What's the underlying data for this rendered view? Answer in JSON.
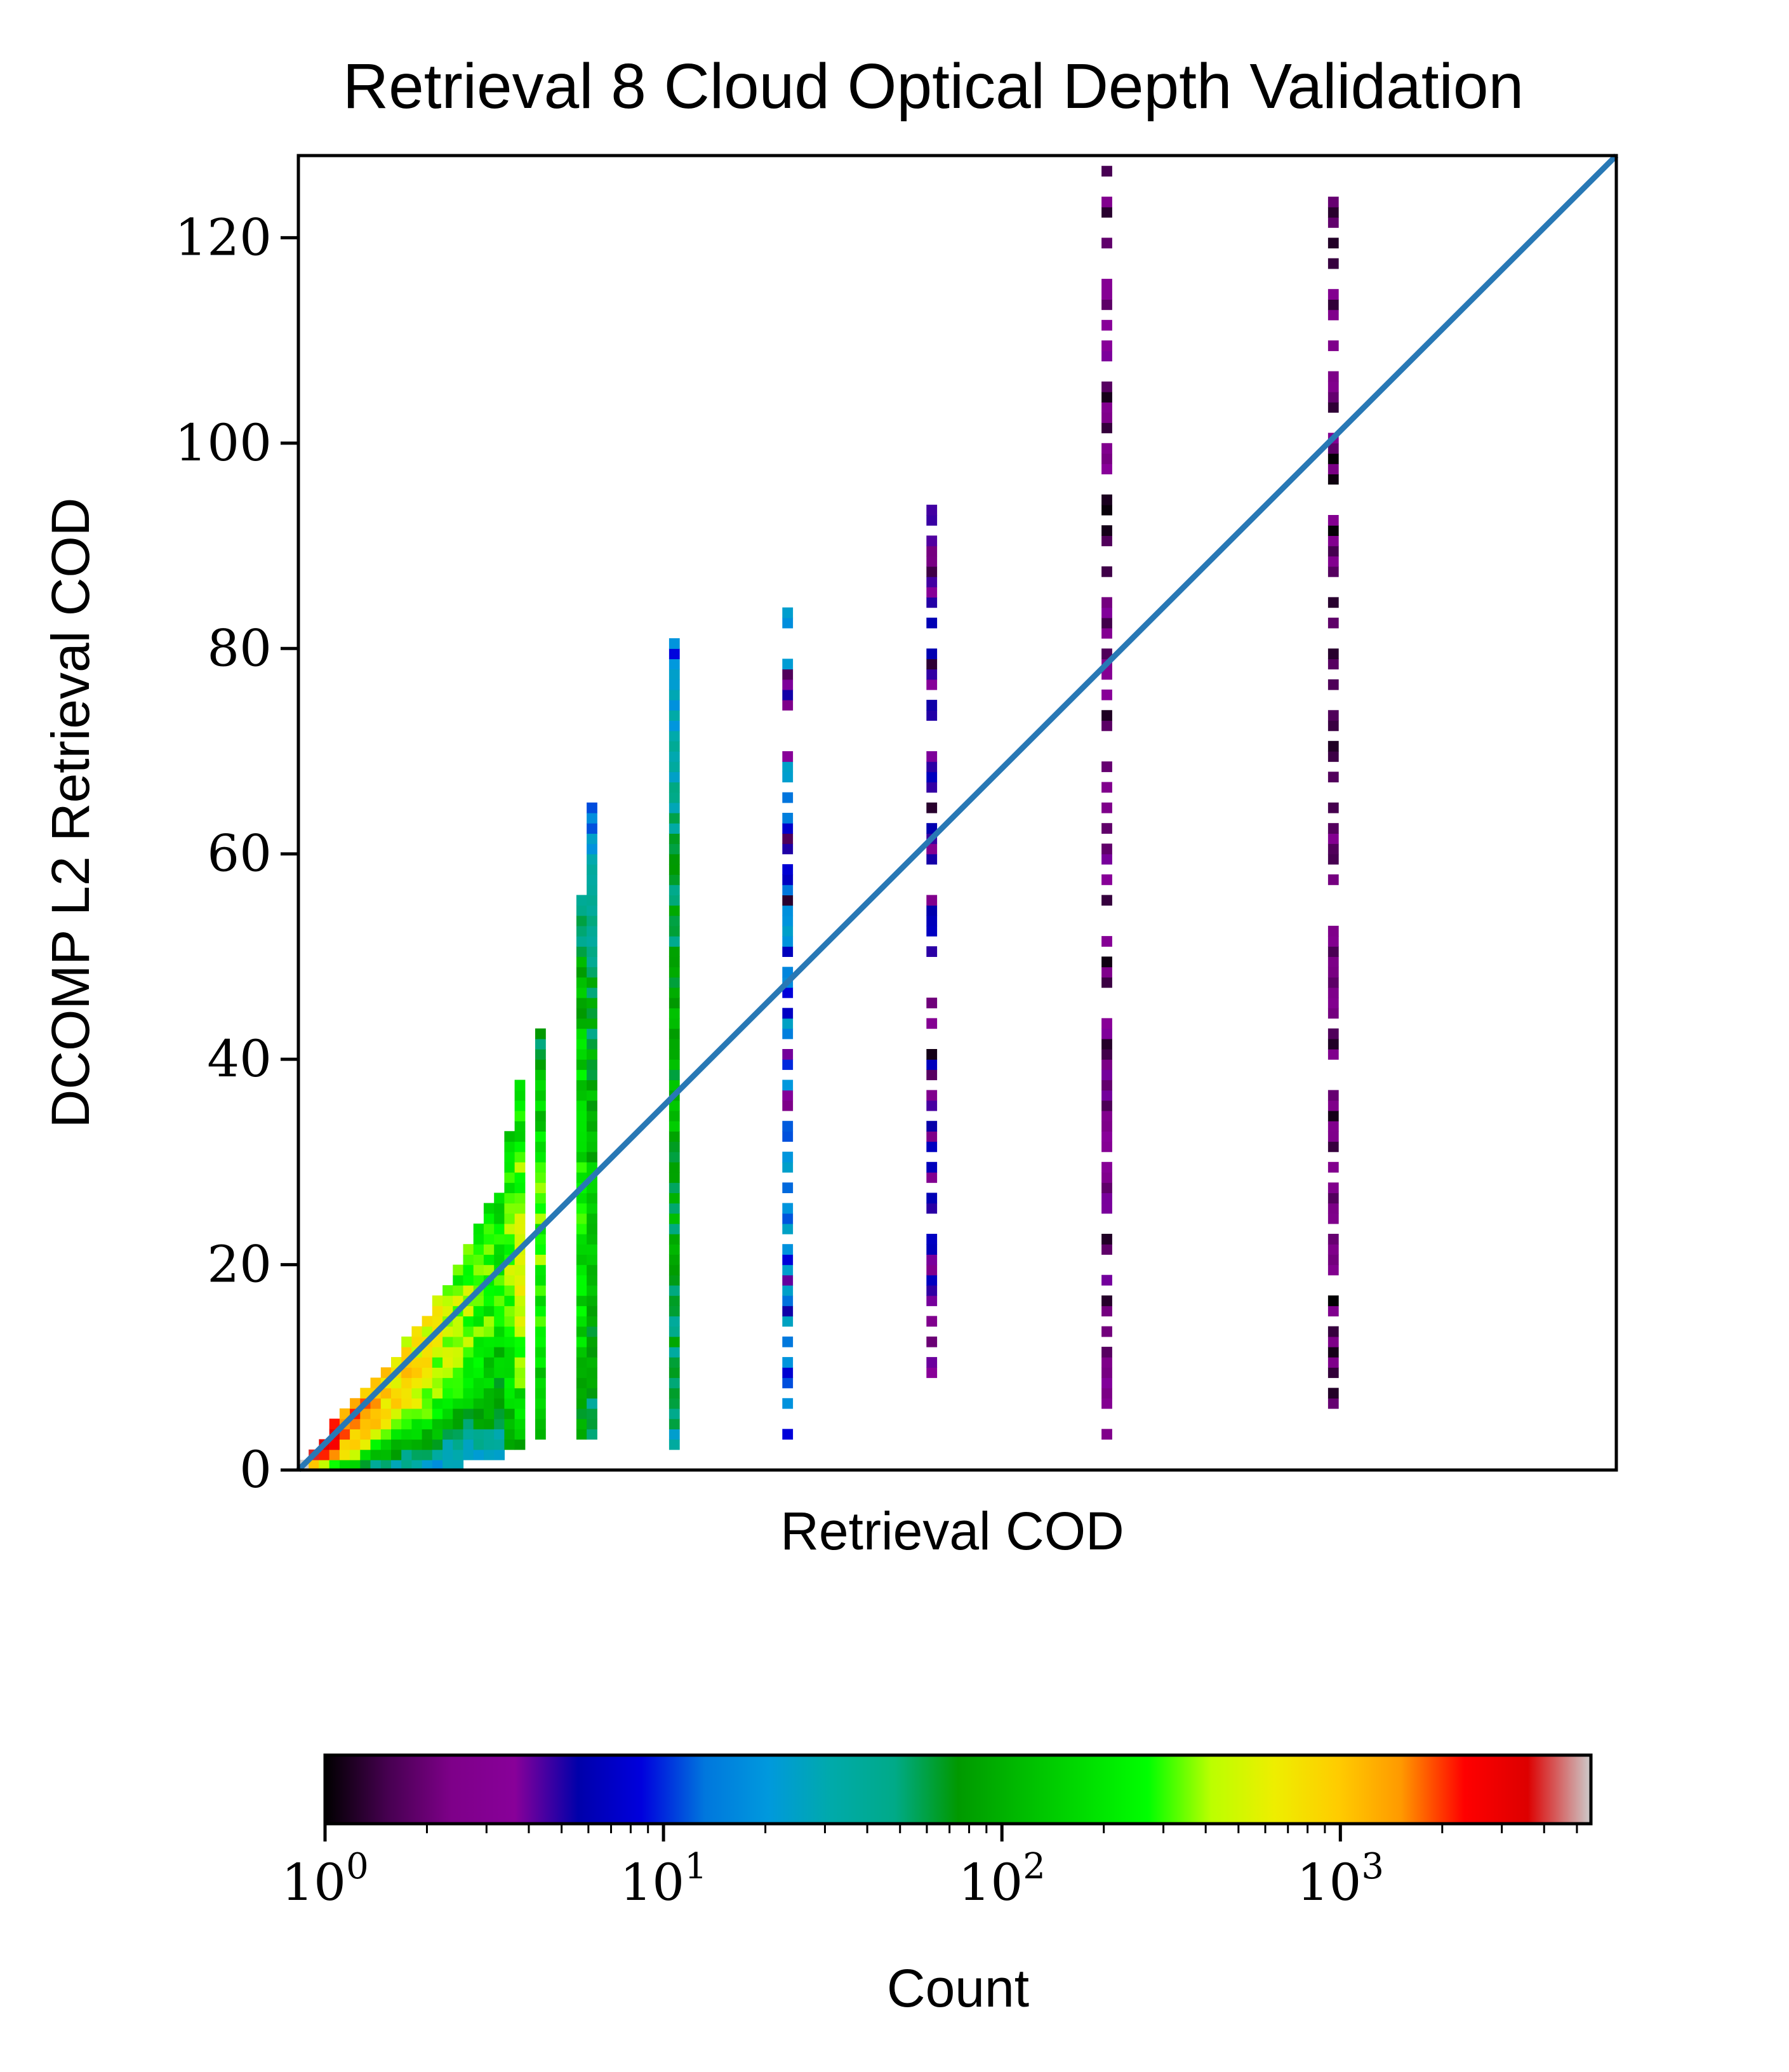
{
  "chart_data": {
    "type": "heatmap",
    "title": "Retrieval 8 Cloud Optical Depth Validation",
    "xlabel": "Retrieval COD",
    "ylabel": "DCOMP L2 Retrieval COD",
    "xlim": [
      0,
      128
    ],
    "ylim": [
      0,
      128
    ],
    "y_ticks": [
      0,
      20,
      40,
      60,
      80,
      100,
      120
    ],
    "x_ticks_labeled": false,
    "reference_line": {
      "type": "1:1",
      "color": "#2878b5"
    },
    "colorbar": {
      "label": "Count",
      "orientation": "horizontal",
      "scale": "log",
      "range": [
        1,
        5500
      ],
      "colormap": "nipy_spectral",
      "ticks": [
        1,
        10,
        100,
        1000
      ],
      "tick_labels": [
        "10^0",
        "10^1",
        "10^2",
        "10^3"
      ]
    },
    "columns": [
      {
        "x": 0.5,
        "y_range": [
          0,
          1
        ],
        "peak_count": 5000
      },
      {
        "x": 1.5,
        "y_range": [
          0,
          2
        ],
        "peak_count": 3500
      },
      {
        "x": 2.5,
        "y_range": [
          0,
          3
        ],
        "peak_count": 3000
      },
      {
        "x": 3.5,
        "y_range": [
          0,
          5
        ],
        "peak_count": 2500
      },
      {
        "x": 4.5,
        "y_range": [
          0,
          6
        ],
        "peak_count": 2000
      },
      {
        "x": 5.5,
        "y_range": [
          0,
          7
        ],
        "peak_count": 1800
      },
      {
        "x": 6.5,
        "y_range": [
          0,
          8
        ],
        "peak_count": 1500
      },
      {
        "x": 7.5,
        "y_range": [
          0,
          9
        ],
        "peak_count": 1300
      },
      {
        "x": 8.5,
        "y_range": [
          0,
          10
        ],
        "peak_count": 1100
      },
      {
        "x": 9.5,
        "y_range": [
          0,
          11
        ],
        "peak_count": 1000
      },
      {
        "x": 10.5,
        "y_range": [
          0,
          13
        ],
        "peak_count": 900
      },
      {
        "x": 11.5,
        "y_range": [
          0,
          14
        ],
        "peak_count": 800
      },
      {
        "x": 12.5,
        "y_range": [
          0,
          15
        ],
        "peak_count": 700
      },
      {
        "x": 13.5,
        "y_range": [
          0,
          17
        ],
        "peak_count": 600
      },
      {
        "x": 14.5,
        "y_range": [
          0,
          18
        ],
        "peak_count": 500
      },
      {
        "x": 15.5,
        "y_range": [
          0,
          20
        ],
        "peak_count": 450
      },
      {
        "x": 16.5,
        "y_range": [
          1,
          22
        ],
        "peak_count": 400
      },
      {
        "x": 17.5,
        "y_range": [
          1,
          24
        ],
        "peak_count": 350
      },
      {
        "x": 18.5,
        "y_range": [
          1,
          26
        ],
        "peak_count": 300
      },
      {
        "x": 19.5,
        "y_range": [
          1,
          27
        ],
        "peak_count": 250
      },
      {
        "x": 20.5,
        "y_range": [
          2,
          33
        ],
        "peak_count": 400
      },
      {
        "x": 21.5,
        "y_range": [
          2,
          38
        ],
        "peak_count": 500
      },
      {
        "x": 23.5,
        "y_range": [
          3,
          43
        ],
        "peak_count": 300
      },
      {
        "x": 27.5,
        "y_range": [
          3,
          56
        ],
        "peak_count": 250
      },
      {
        "x": 28.5,
        "y_range": [
          3,
          65
        ],
        "peak_count": 120
      },
      {
        "x": 36.5,
        "y_range": [
          2,
          81
        ],
        "peak_count": 100
      },
      {
        "x": 47.5,
        "y_range": [
          3,
          84
        ],
        "peak_count": 25
      },
      {
        "x": 61.5,
        "y_range": [
          3,
          95
        ],
        "peak_count": 6
      },
      {
        "x": 78.5,
        "y_range": [
          2,
          127
        ],
        "peak_count": 3
      },
      {
        "x": 100.5,
        "y_range": [
          6,
          127
        ],
        "peak_count": 2
      }
    ]
  }
}
